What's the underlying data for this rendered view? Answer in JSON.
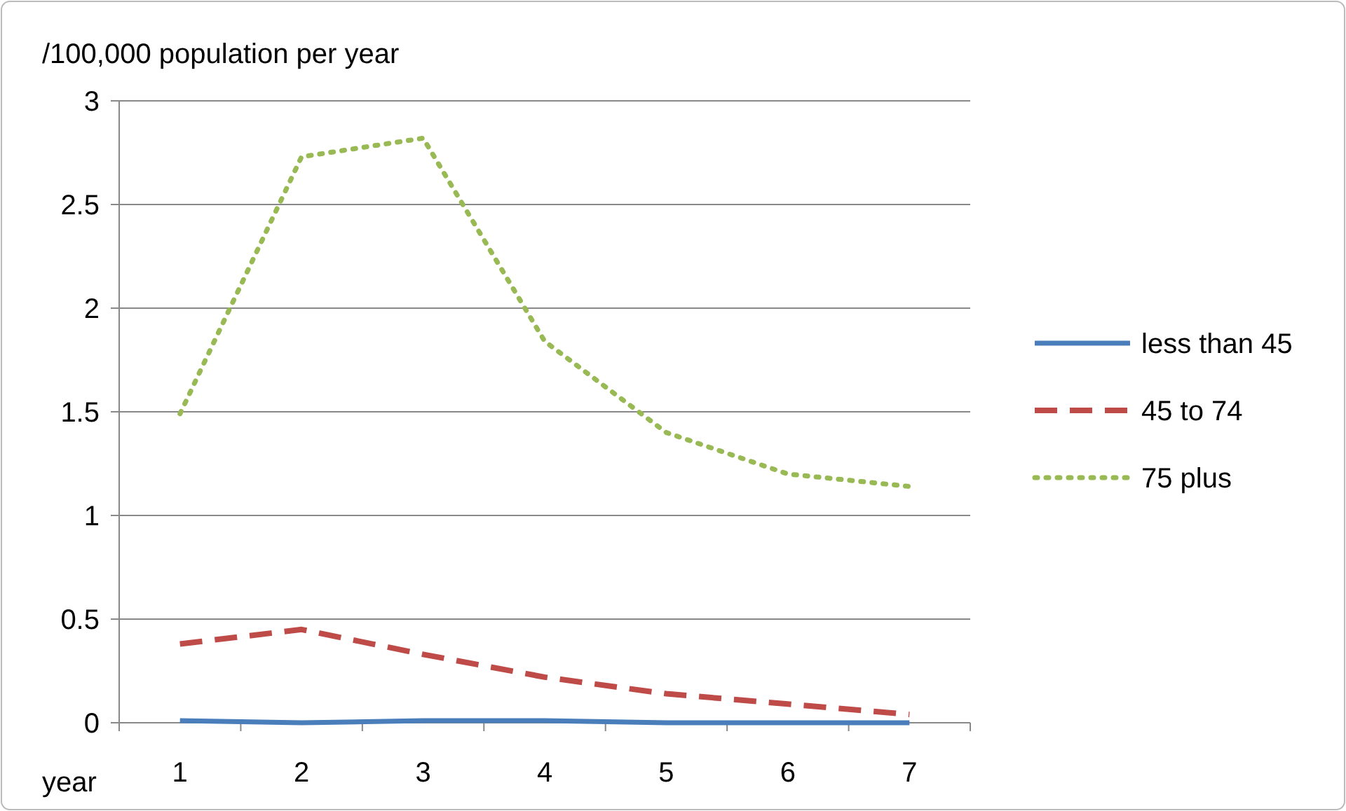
{
  "chart_data": {
    "type": "line",
    "ylabel": "/100,000 population per year",
    "xlabel": "year",
    "categories": [
      "1",
      "2",
      "3",
      "4",
      "5",
      "6",
      "7"
    ],
    "series": [
      {
        "name": "less than 45",
        "color": "#4a7ebb",
        "line_style": "solid",
        "values": [
          0.01,
          0,
          0.01,
          0.01,
          0,
          0,
          0
        ]
      },
      {
        "name": "45 to 74",
        "color": "#be4b48",
        "line_style": "dashed",
        "values": [
          0.38,
          0.45,
          0.33,
          0.22,
          0.14,
          0.09,
          0.04
        ]
      },
      {
        "name": "75 plus",
        "color": "#98b954",
        "line_style": "dotted",
        "values": [
          1.49,
          2.73,
          2.82,
          1.84,
          1.4,
          1.2,
          1.14
        ]
      }
    ],
    "ylim": [
      0,
      3
    ],
    "yticks": [
      0,
      0.5,
      1,
      1.5,
      2,
      2.5,
      3
    ],
    "grid": "y",
    "legend": "right",
    "marker": "none"
  }
}
